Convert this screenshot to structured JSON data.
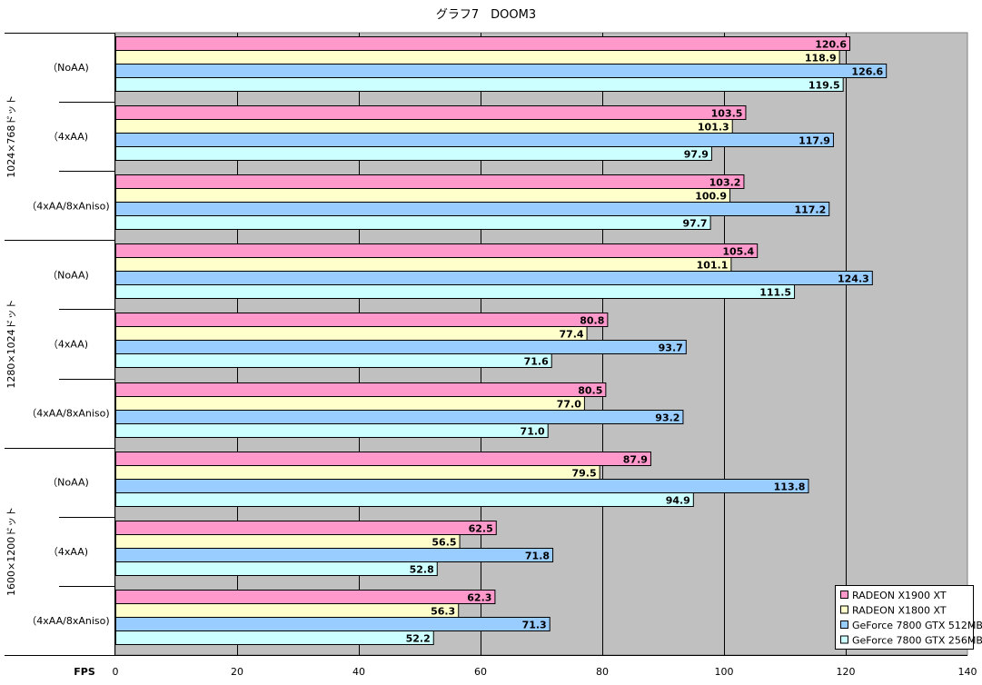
{
  "chart_data": {
    "type": "bar",
    "orientation": "horizontal",
    "title": "グラフ7　DOOM3",
    "xlabel": "FPS",
    "xlim": [
      0,
      140
    ],
    "xticks": [
      0,
      20,
      40,
      60,
      80,
      100,
      120,
      140
    ],
    "grid": true,
    "legend_position": "bottom-right",
    "groups": [
      {
        "label": "1024×768ドット",
        "subcategories": [
          "（NoAA)",
          "（4xAA)",
          "（4xAA/8xAniso)"
        ]
      },
      {
        "label": "1280×1024ドット",
        "subcategories": [
          "（NoAA)",
          "（4xAA)",
          "（4xAA/8xAniso)"
        ]
      },
      {
        "label": "1600×1200ドット",
        "subcategories": [
          "（NoAA)",
          "（4xAA)",
          "（4xAA/8xAniso)"
        ]
      }
    ],
    "series": [
      {
        "name": "RADEON X1900 XT",
        "color": "#ff99cc",
        "values": [
          120.6,
          103.5,
          103.2,
          105.4,
          80.8,
          80.5,
          87.9,
          62.5,
          62.3
        ]
      },
      {
        "name": "RADEON X1800 XT",
        "color": "#ffffcc",
        "values": [
          118.9,
          101.3,
          100.9,
          101.1,
          77.4,
          77.0,
          79.5,
          56.5,
          56.3
        ]
      },
      {
        "name": "GeForce 7800 GTX 512MB",
        "color": "#99ccff",
        "values": [
          126.6,
          117.9,
          117.2,
          124.3,
          93.7,
          93.2,
          113.8,
          71.8,
          71.3
        ]
      },
      {
        "name": "GeForce 7800 GTX 256MB",
        "color": "#ccffff",
        "values": [
          119.5,
          97.9,
          97.7,
          111.5,
          71.6,
          71.0,
          94.9,
          52.8,
          52.2
        ]
      }
    ],
    "data_labels": [
      [
        "120.6",
        "103.5",
        "103.2",
        "105.4",
        "80.8",
        "80.5",
        "87.9",
        "62.5",
        "62.3"
      ],
      [
        "118.9",
        "101.3",
        "100.9",
        "101.1",
        "77.4",
        "77.0",
        "79.5",
        "56.5",
        "56.3"
      ],
      [
        "126.6",
        "117.9",
        "117.2",
        "124.3",
        "93.7",
        "93.2",
        "113.8",
        "71.8",
        "71.3"
      ],
      [
        "119.5",
        "97.9",
        "97.7",
        "111.5",
        "71.6",
        "71.0",
        "94.9",
        "52.8",
        "52.2"
      ]
    ],
    "plot_background": "#c0c0c0",
    "gridline_color": "#000000"
  }
}
